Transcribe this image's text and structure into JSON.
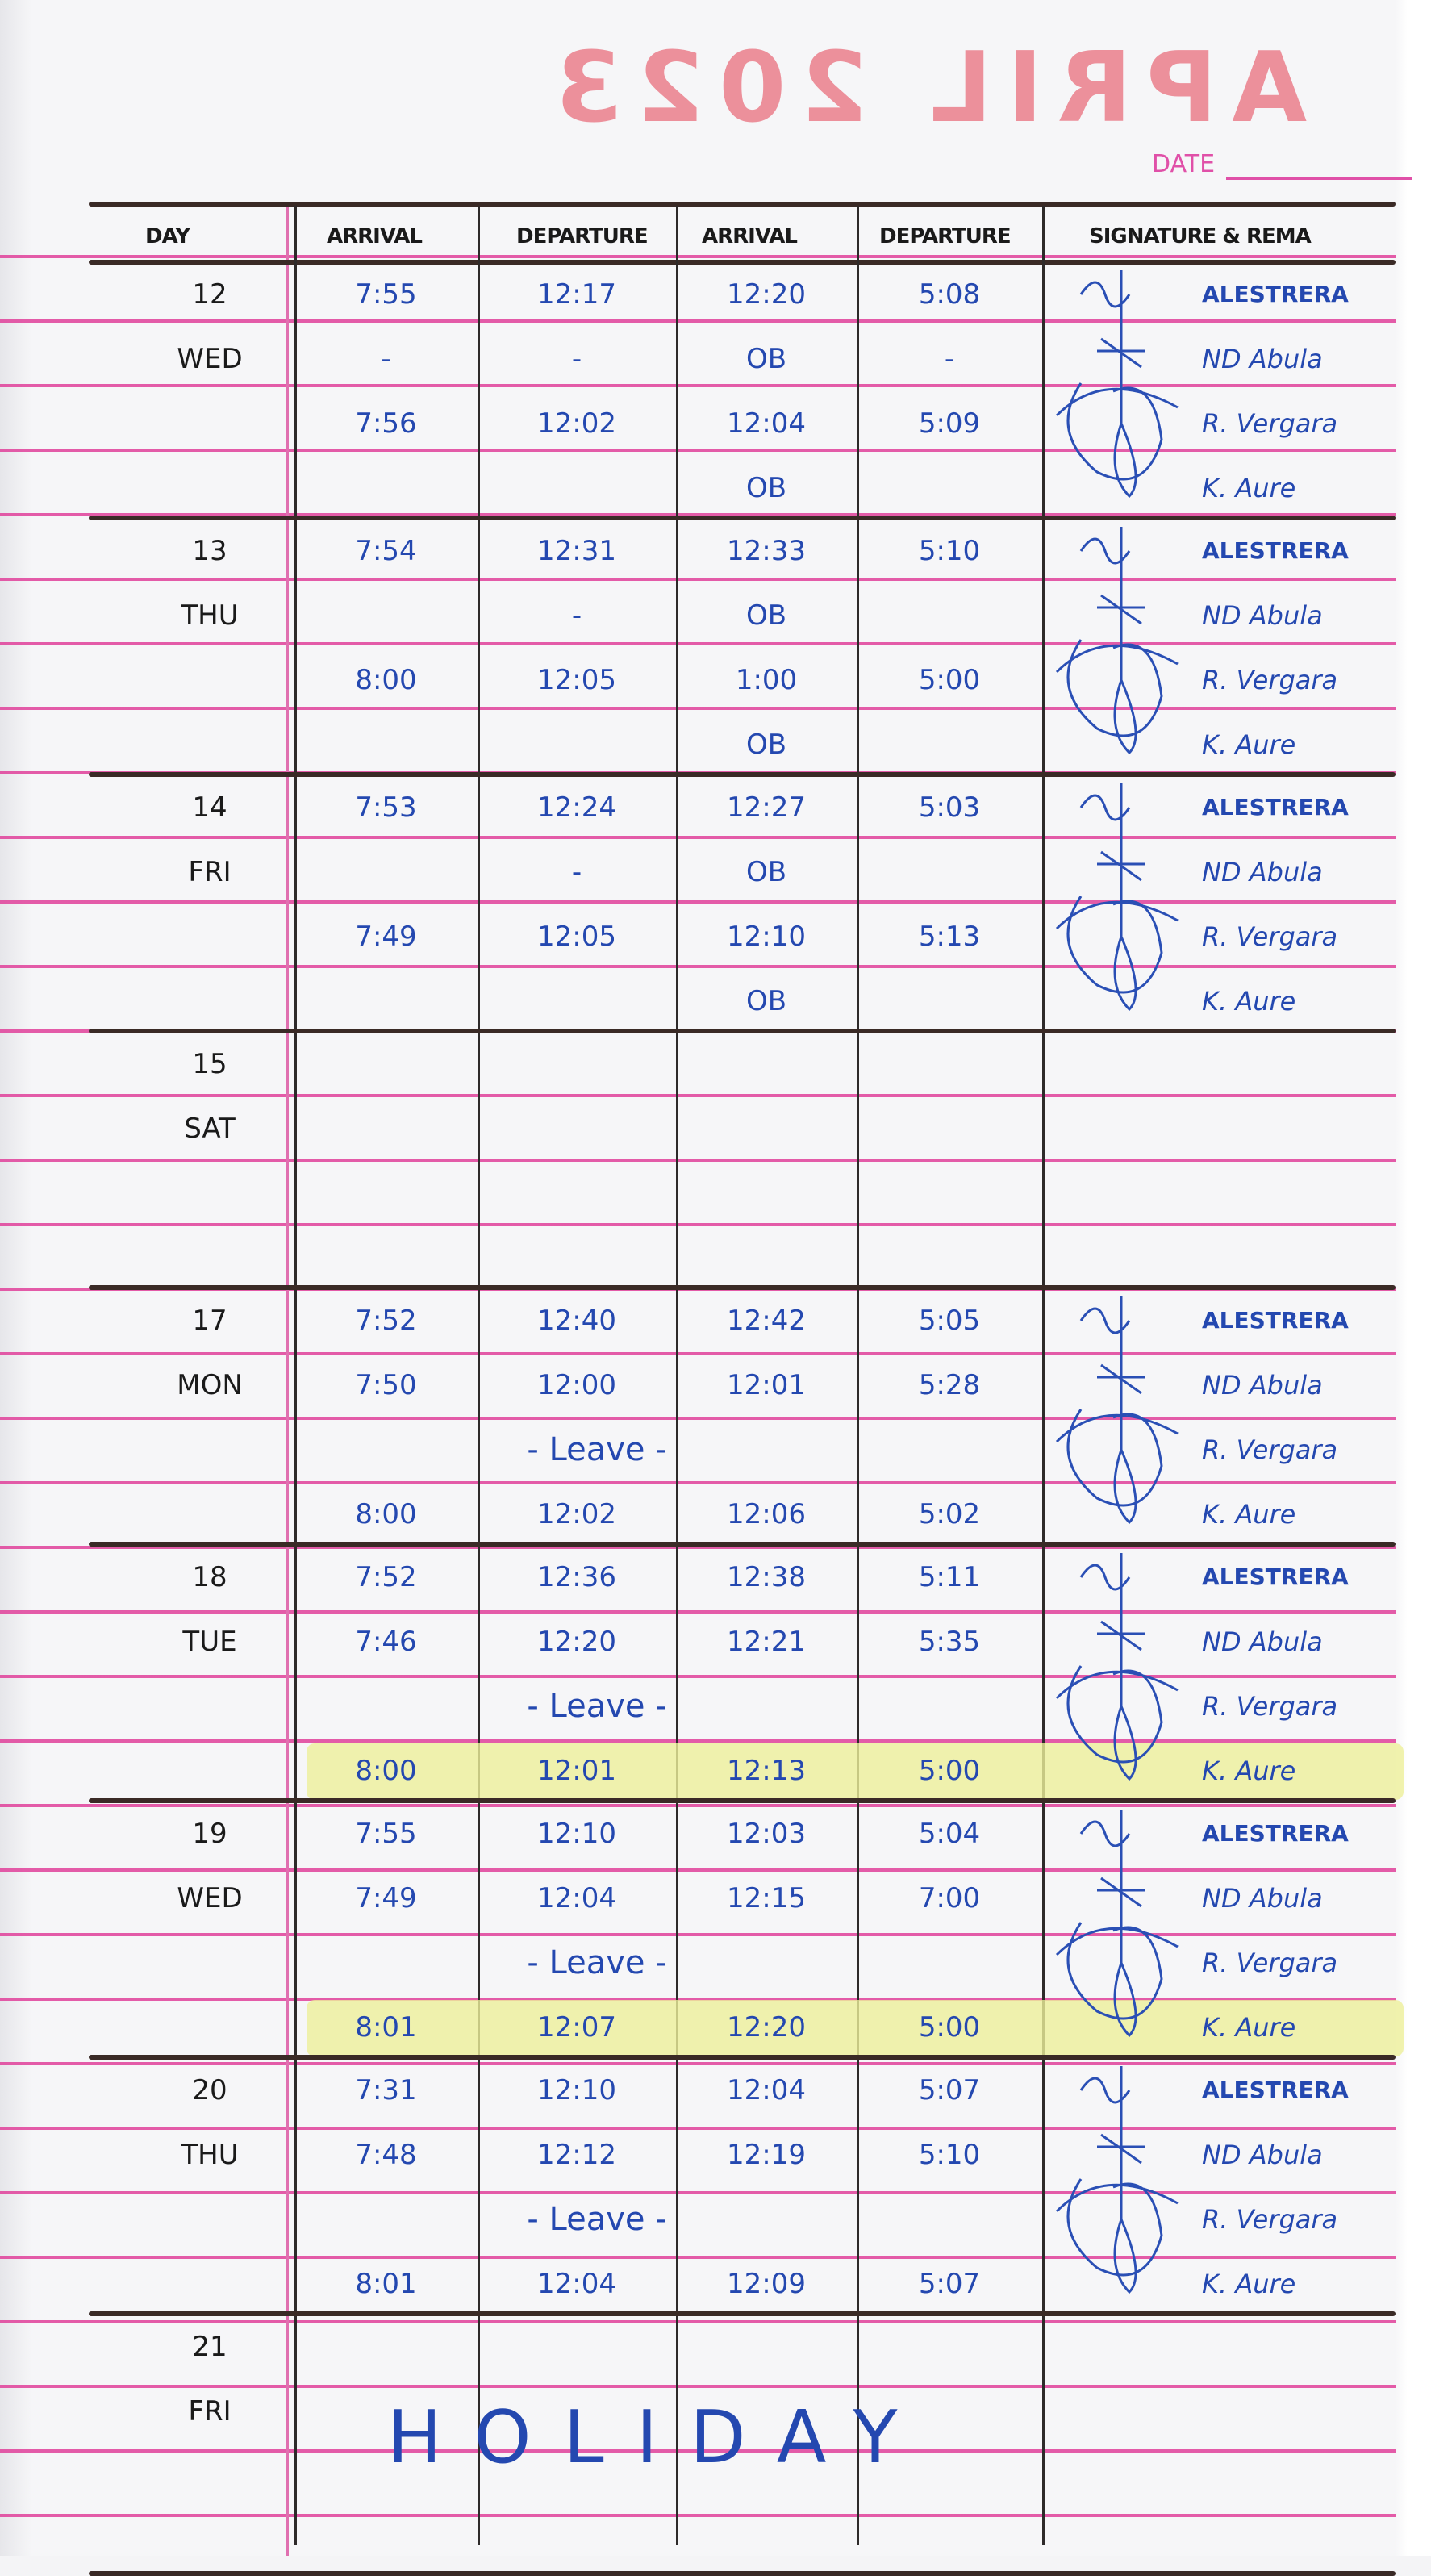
{
  "stamp": "APRIL 2023",
  "date_label": "DATE",
  "headers": [
    "DAY",
    "ARRIVAL",
    "DEPARTURE",
    "ARRIVAL",
    "DEPARTURE",
    "SIGNATURE & REMA"
  ],
  "signature_names": [
    "ALESTRERA",
    "ND Abula",
    "R. Vergara",
    "K. Aure"
  ],
  "colors": {
    "ink": "#2448b0",
    "ruling": "#e0409a",
    "stamp": "#e85a6a",
    "highlight": "#eef09a"
  },
  "days": [
    {
      "day": "12",
      "weekday": "WED",
      "rows": [
        [
          "7:55",
          "12:17",
          "12:20",
          "5:08"
        ],
        [
          "-",
          "-",
          "OB",
          "-"
        ],
        [
          "7:56",
          "12:02",
          "12:04",
          "5:09"
        ],
        [
          "",
          "",
          "OB",
          ""
        ]
      ],
      "signed": true
    },
    {
      "day": "13",
      "weekday": "THU",
      "rows": [
        [
          "7:54",
          "12:31",
          "12:33",
          "5:10"
        ],
        [
          "",
          "-",
          "OB",
          ""
        ],
        [
          "8:00",
          "12:05",
          "1:00",
          "5:00"
        ],
        [
          "",
          "",
          "OB",
          ""
        ]
      ],
      "signed": true
    },
    {
      "day": "14",
      "weekday": "FRI",
      "rows": [
        [
          "7:53",
          "12:24",
          "12:27",
          "5:03"
        ],
        [
          "",
          "-",
          "OB",
          ""
        ],
        [
          "7:49",
          "12:05",
          "12:10",
          "5:13"
        ],
        [
          "",
          "",
          "OB",
          ""
        ]
      ],
      "signed": true
    },
    {
      "day": "15",
      "weekday": "SAT",
      "rows": [
        [
          "",
          "",
          "",
          ""
        ],
        [
          "",
          "",
          "",
          ""
        ],
        [
          "",
          "",
          "",
          ""
        ],
        [
          "",
          "",
          "",
          ""
        ]
      ],
      "signed": false
    },
    {
      "day": "17",
      "weekday": "MON",
      "rows": [
        [
          "7:52",
          "12:40",
          "12:42",
          "5:05"
        ],
        [
          "7:50",
          "12:00",
          "12:01",
          "5:28"
        ],
        [
          "",
          "",
          "",
          ""
        ],
        [
          "8:00",
          "12:02",
          "12:06",
          "5:02"
        ]
      ],
      "leave": "- Leave -",
      "signed": true
    },
    {
      "day": "18",
      "weekday": "TUE",
      "rows": [
        [
          "7:52",
          "12:36",
          "12:38",
          "5:11"
        ],
        [
          "7:46",
          "12:20",
          "12:21",
          "5:35"
        ],
        [
          "",
          "",
          "",
          ""
        ],
        [
          "8:00",
          "12:01",
          "12:13",
          "5:00"
        ]
      ],
      "leave": "- Leave -",
      "highlight_last": true,
      "signed": true
    },
    {
      "day": "19",
      "weekday": "WED",
      "rows": [
        [
          "7:55",
          "12:10",
          "12:03",
          "5:04"
        ],
        [
          "7:49",
          "12:04",
          "12:15",
          "7:00"
        ],
        [
          "",
          "",
          "",
          ""
        ],
        [
          "8:01",
          "12:07",
          "12:20",
          "5:00"
        ]
      ],
      "leave": "- Leave -",
      "highlight_last": true,
      "signed": true
    },
    {
      "day": "20",
      "weekday": "THU",
      "rows": [
        [
          "7:31",
          "12:10",
          "12:04",
          "5:07"
        ],
        [
          "7:48",
          "12:12",
          "12:19",
          "5:10"
        ],
        [
          "",
          "",
          "",
          ""
        ],
        [
          "8:01",
          "12:04",
          "12:09",
          "5:07"
        ]
      ],
      "leave": "- Leave -",
      "signed": true
    },
    {
      "day": "21",
      "weekday": "FRI",
      "rows": [],
      "holiday": "HOLIDAY",
      "signed": false
    }
  ]
}
